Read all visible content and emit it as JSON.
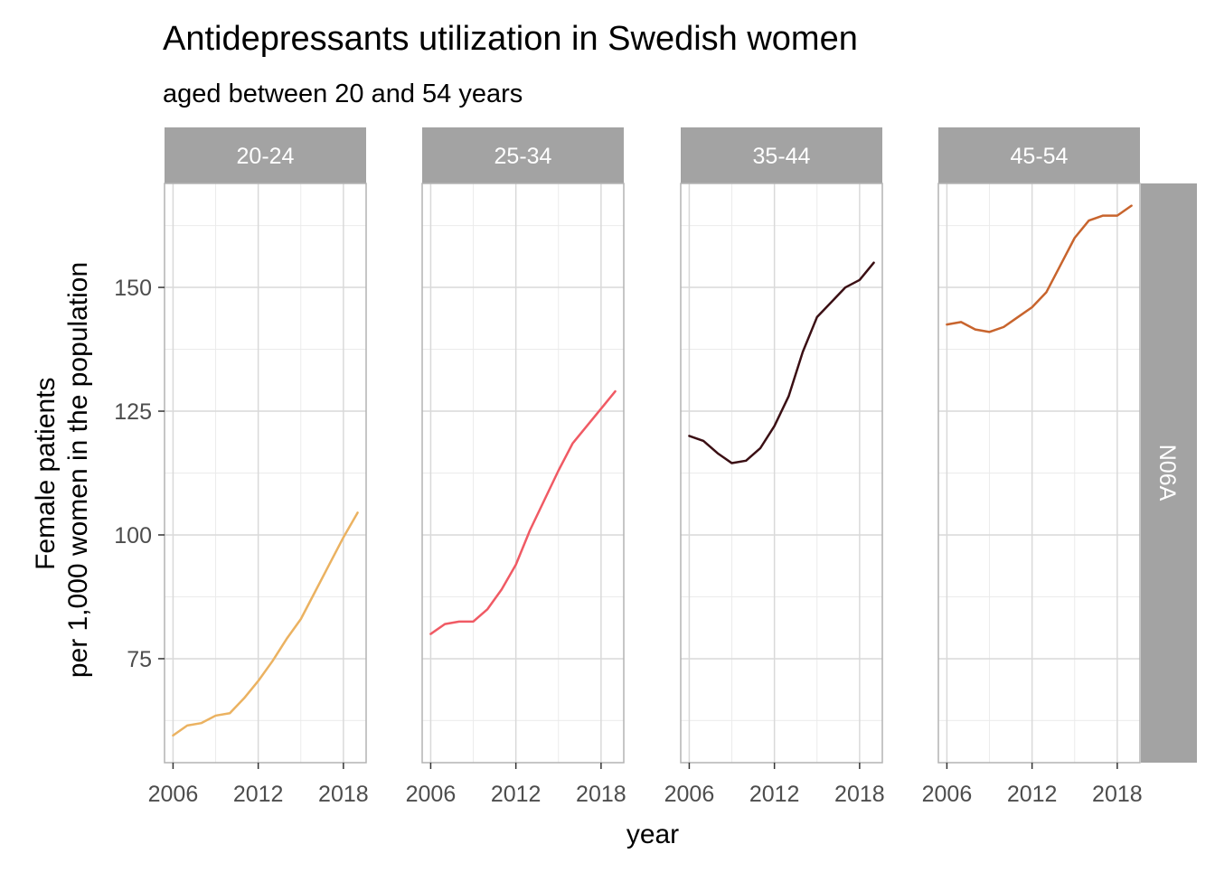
{
  "chart_data": {
    "type": "line",
    "title": "Antidepressants utilization in Swedish women",
    "subtitle": "aged between 20 and 54 years",
    "xlabel": "year",
    "ylabel_lines": [
      "Female patients",
      "per 1,000 women in the population"
    ],
    "xlim": [
      2005.4,
      2019.6
    ],
    "ylim": [
      54,
      171
    ],
    "x_ticks": [
      2006,
      2012,
      2018
    ],
    "x_tick_labels": [
      "2006",
      "2012",
      "2018"
    ],
    "y_ticks": [
      75,
      100,
      125,
      150
    ],
    "y_tick_labels": [
      "75",
      "100",
      "125",
      "150"
    ],
    "grid": true,
    "facet_row_label": "N06A",
    "x": [
      2006,
      2007,
      2008,
      2009,
      2010,
      2011,
      2012,
      2013,
      2014,
      2015,
      2016,
      2017,
      2018,
      2019
    ],
    "panels": [
      {
        "name": "20-24",
        "color": "#EBB261",
        "values": [
          59.5,
          61.5,
          62.0,
          63.5,
          64.0,
          67.0,
          70.5,
          74.5,
          79.0,
          83.0,
          88.5,
          94.0,
          99.5,
          104.5
        ]
      },
      {
        "name": "25-34",
        "color": "#F05A64",
        "values": [
          80.0,
          82.0,
          82.5,
          82.5,
          85.0,
          89.0,
          94.0,
          101.0,
          107.0,
          113.0,
          118.5,
          122.0,
          125.5,
          129.0
        ]
      },
      {
        "name": "35-44",
        "color": "#3B0F14",
        "values": [
          120.0,
          119.0,
          116.5,
          114.5,
          115.0,
          117.5,
          122.0,
          128.0,
          137.0,
          144.0,
          147.0,
          150.0,
          151.5,
          155.0
        ]
      },
      {
        "name": "45-54",
        "color": "#C8642D",
        "values": [
          142.5,
          143.0,
          141.5,
          141.0,
          142.0,
          144.0,
          146.0,
          149.0,
          154.5,
          160.0,
          163.5,
          164.5,
          164.5,
          166.5
        ]
      }
    ]
  }
}
